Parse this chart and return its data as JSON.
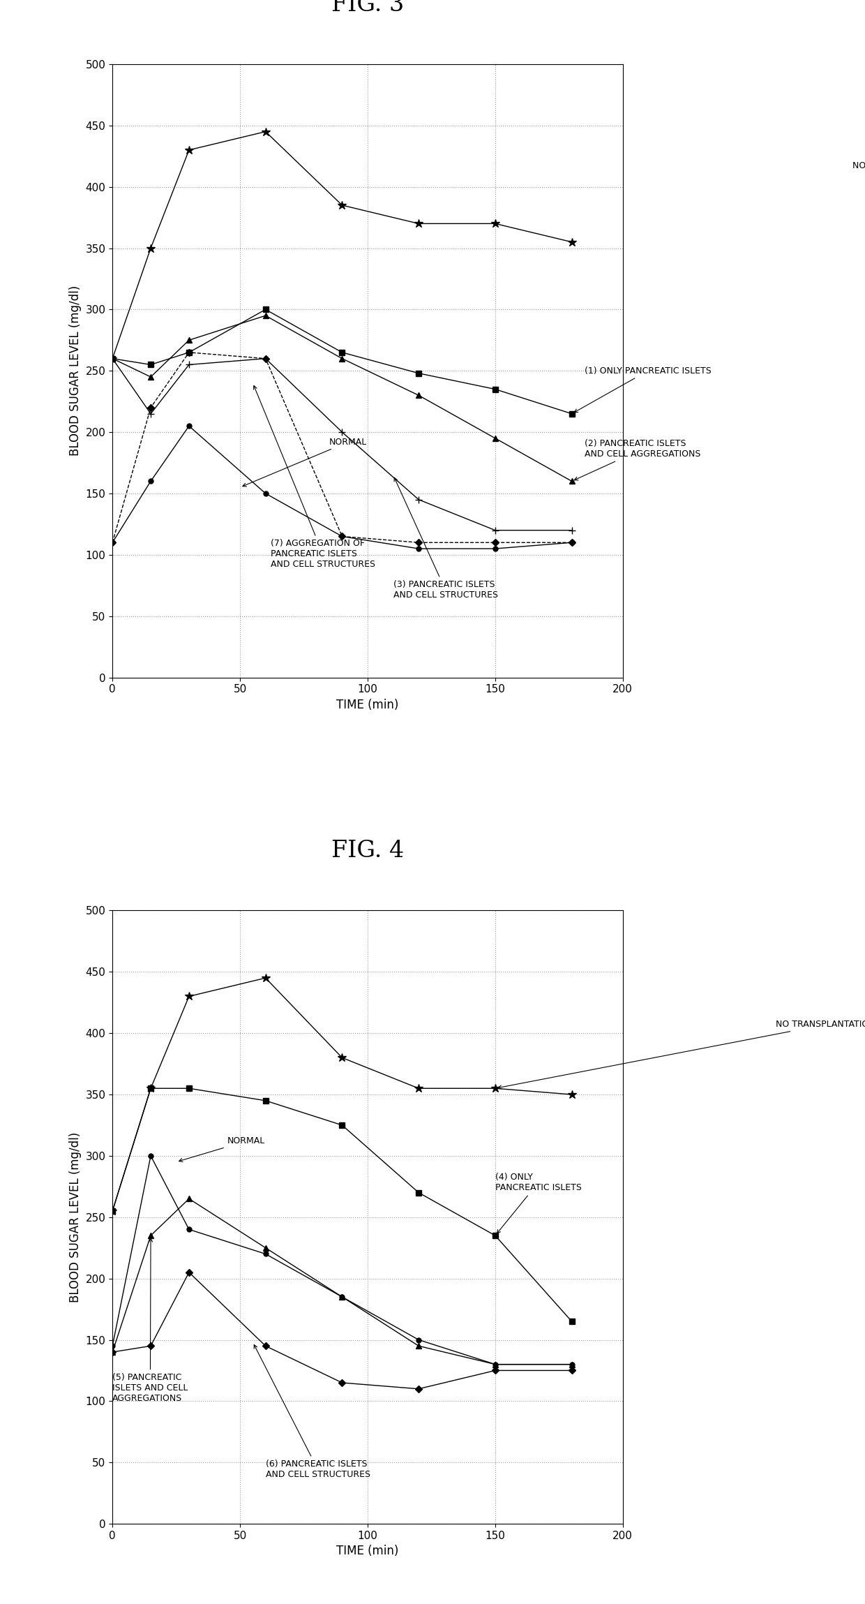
{
  "fig3_title": "FIG. 3",
  "fig4_title": "FIG. 4",
  "xlabel": "TIME (min)",
  "ylabel": "BLOOD SUGAR LEVEL (mg/dl)",
  "ylim": [
    0,
    500
  ],
  "xlim": [
    0,
    200
  ],
  "yticks": [
    0,
    50,
    100,
    150,
    200,
    250,
    300,
    350,
    400,
    450,
    500
  ],
  "xticks": [
    0,
    50,
    100,
    150,
    200
  ],
  "fig3_series": [
    {
      "label": "NO TRANSPLANTATION",
      "x": [
        0,
        15,
        30,
        60,
        90,
        120,
        150,
        180
      ],
      "y": [
        260,
        350,
        430,
        445,
        385,
        370,
        370,
        355
      ],
      "marker": "*",
      "linestyle": "-",
      "markersize": 9
    },
    {
      "label": "(1) ONLY PANCREATIC ISLETS",
      "x": [
        0,
        15,
        30,
        60,
        90,
        120,
        150,
        180
      ],
      "y": [
        260,
        255,
        265,
        300,
        265,
        248,
        235,
        215
      ],
      "marker": "s",
      "linestyle": "-",
      "markersize": 6
    },
    {
      "label": "(2) PANCREATIC ISLETS\nAND CELL AGGREGATIONS",
      "x": [
        0,
        15,
        30,
        60,
        90,
        120,
        150,
        180
      ],
      "y": [
        260,
        245,
        275,
        295,
        260,
        230,
        195,
        160
      ],
      "marker": "^",
      "linestyle": "-",
      "markersize": 6
    },
    {
      "label": "(3) PANCREATIC ISLETS\nAND CELL STRUCTURES",
      "x": [
        0,
        15,
        30,
        60,
        90,
        120,
        150,
        180
      ],
      "y": [
        260,
        215,
        255,
        260,
        200,
        145,
        120,
        120
      ],
      "marker": "+",
      "linestyle": "-",
      "markersize": 7
    },
    {
      "label": "NORMAL",
      "x": [
        0,
        15,
        30,
        60,
        90,
        120,
        150,
        180
      ],
      "y": [
        110,
        160,
        205,
        150,
        115,
        105,
        105,
        110
      ],
      "marker": "o",
      "linestyle": "-",
      "markersize": 5
    },
    {
      "label": "(7) AGGREGATION OF\nPANCREATIC ISLETS\nAND CELL STRUCTURES",
      "x": [
        0,
        15,
        30,
        60,
        90,
        120,
        150,
        180
      ],
      "y": [
        110,
        220,
        265,
        260,
        115,
        110,
        110,
        110
      ],
      "marker": "D",
      "linestyle": "--",
      "markersize": 5
    }
  ],
  "fig4_series": [
    {
      "label": "NO TRANSPLANTATION",
      "x": [
        0,
        15,
        30,
        60,
        90,
        120,
        150,
        180
      ],
      "y": [
        255,
        355,
        430,
        445,
        380,
        355,
        355,
        350
      ],
      "marker": "*",
      "linestyle": "-",
      "markersize": 9
    },
    {
      "label": "(4) ONLY\nPANCREATIC ISLETS",
      "x": [
        0,
        15,
        30,
        60,
        90,
        120,
        150,
        180
      ],
      "y": [
        255,
        355,
        355,
        345,
        325,
        270,
        235,
        165
      ],
      "marker": "s",
      "linestyle": "-",
      "markersize": 6
    },
    {
      "label": "(5) PANCREATIC\nISLETS AND CELL\nAGGREGATIONS",
      "x": [
        0,
        15,
        30,
        60,
        90,
        120,
        150,
        180
      ],
      "y": [
        140,
        235,
        265,
        225,
        185,
        145,
        130,
        130
      ],
      "marker": "^",
      "linestyle": "-",
      "markersize": 6
    },
    {
      "label": "(6) PANCREATIC ISLETS\nAND CELL STRUCTURES",
      "x": [
        0,
        15,
        30,
        60,
        90,
        120,
        150,
        180
      ],
      "y": [
        140,
        145,
        205,
        145,
        115,
        110,
        125,
        125
      ],
      "marker": "D",
      "linestyle": "-",
      "markersize": 5
    },
    {
      "label": "NORMAL",
      "x": [
        0,
        15,
        30,
        60,
        90,
        120,
        150,
        180
      ],
      "y": [
        145,
        300,
        240,
        220,
        185,
        150,
        130,
        130
      ],
      "marker": "o",
      "linestyle": "-",
      "markersize": 5
    }
  ],
  "title_fontsize": 24,
  "label_fontsize": 12,
  "tick_fontsize": 11,
  "annotation_fontsize": 9
}
